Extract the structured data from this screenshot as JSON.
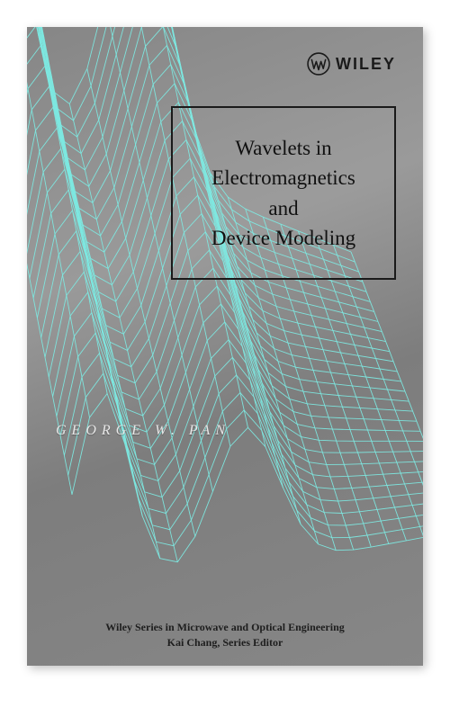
{
  "publisher": {
    "name": "WILEY",
    "name_fontsize": 18,
    "logo_color": "#1a1a1a"
  },
  "title": {
    "line1": "Wavelets in",
    "line2": "Electromagnetics",
    "line3": "and",
    "line4": "Device Modeling",
    "fontsize": 23,
    "color": "#111111",
    "border_color": "#1a1a1a"
  },
  "author": {
    "text": "GEORGE W. PAN",
    "fontsize": 16,
    "color": "#e8e8e8"
  },
  "series": {
    "line1": "Wiley Series in Microwave and Optical Engineering",
    "line2": "Kai Chang, Series Editor",
    "fontsize": 12
  },
  "wireframe": {
    "stroke": "#7de8e0",
    "stroke_width": 0.9,
    "grid_density_u": 22,
    "grid_density_v": 28
  },
  "background": {
    "gradient_from": "#8a8a8a",
    "gradient_to": "#7a7a7a"
  }
}
